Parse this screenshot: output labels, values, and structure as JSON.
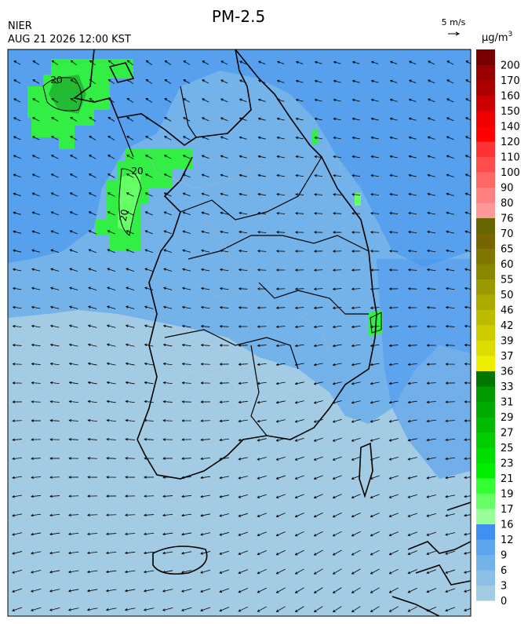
{
  "header": {
    "title": "PM-2.5",
    "agency": "NIER",
    "timestamp": "AUG 21 2026 12:00 KST",
    "wind_scale": "5 m/s"
  },
  "colorbar": {
    "unit_base": "μg/m",
    "unit_sup": "3",
    "ticks": [
      0,
      3,
      6,
      9,
      12,
      16,
      17,
      19,
      21,
      23,
      25,
      27,
      29,
      31,
      33,
      36,
      37,
      39,
      42,
      46,
      50,
      55,
      60,
      65,
      70,
      76,
      80,
      90,
      100,
      110,
      120,
      140,
      150,
      160,
      170,
      200
    ],
    "colors": [
      "#a3cbe3",
      "#8cbfe6",
      "#74b2ea",
      "#5ea5ee",
      "#3f90f0",
      "#99ff99",
      "#66ff66",
      "#33ff33",
      "#00ee00",
      "#00dd00",
      "#00cc00",
      "#00bb00",
      "#00aa00",
      "#009900",
      "#007700",
      "#eeee00",
      "#dddd00",
      "#cccc00",
      "#bbbb00",
      "#aaaa00",
      "#999900",
      "#888800",
      "#807700",
      "#776600",
      "#666600",
      "#ff9999",
      "#ff8080",
      "#ff6666",
      "#ff4d4d",
      "#ff3333",
      "#ff0000",
      "#ee0000",
      "#cc0000",
      "#aa0000",
      "#990000",
      "#770000"
    ]
  },
  "map": {
    "contour_labels": [
      "20",
      "20",
      "20"
    ]
  }
}
